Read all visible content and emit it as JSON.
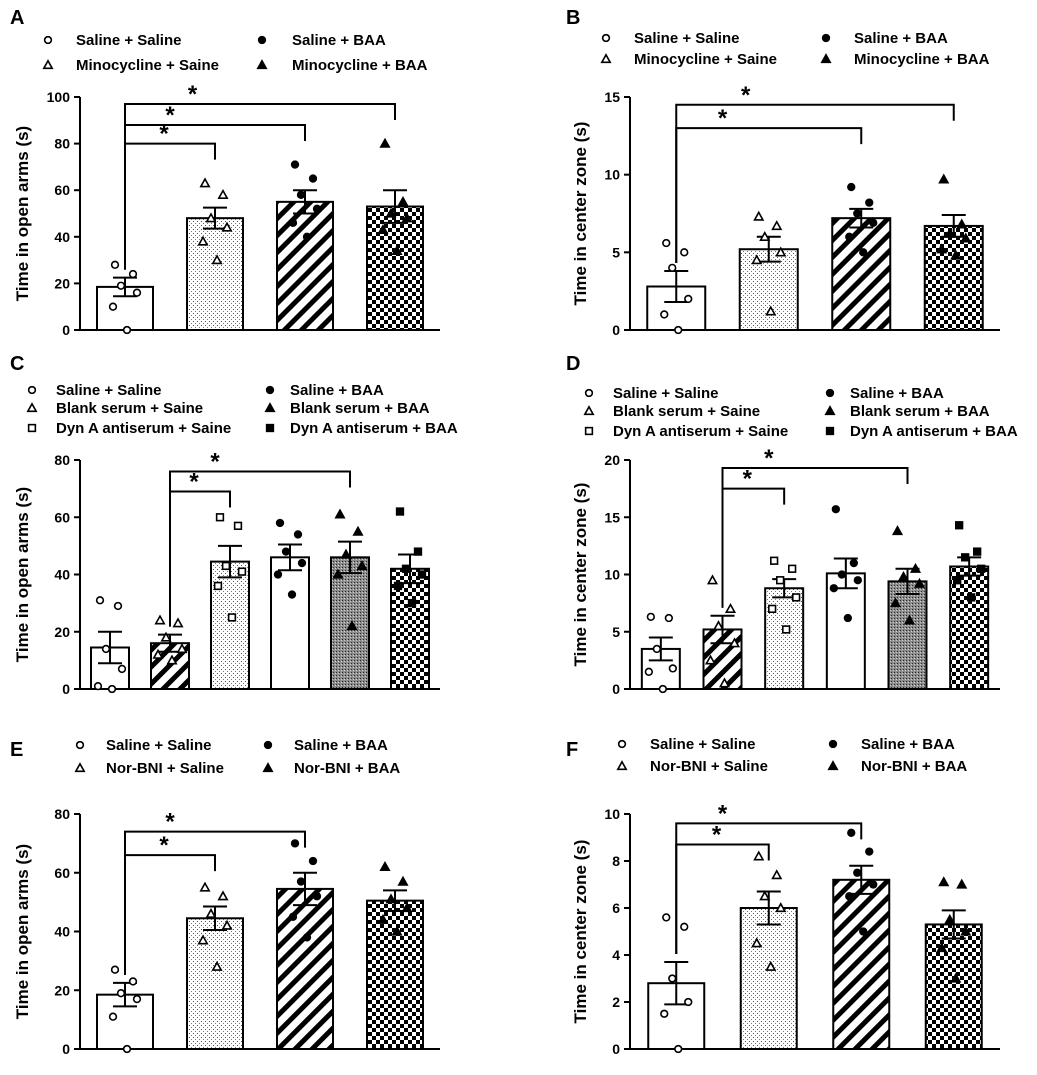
{
  "figure": {
    "colors": {
      "ink": "#000000",
      "background": "#ffffff"
    }
  },
  "chart_data": [
    {
      "panel": "A",
      "type": "bar",
      "ylabel": "Time in open arms (s)",
      "ylim": [
        0,
        100
      ],
      "yticks": [
        0,
        20,
        40,
        60,
        80,
        100
      ],
      "legend_entries": [
        "Saline + Saline",
        "Saline + BAA",
        "Minocycline + Saine",
        "Minocycline + BAA"
      ],
      "legend_markers": [
        "circle-open",
        "circle",
        "triangle-open",
        "triangle"
      ],
      "groups": [
        {
          "name": "Saline + Saline",
          "mean": 18.5,
          "sem": 4,
          "fill": "white",
          "marker": "circle-open",
          "points": [
            28,
            24,
            19,
            16,
            10,
            0
          ]
        },
        {
          "name": "Minocycline + Saine",
          "mean": 48,
          "sem": 4.5,
          "fill": "dots",
          "marker": "triangle-open",
          "points": [
            63,
            58,
            48,
            44,
            38,
            30
          ]
        },
        {
          "name": "Saline + BAA",
          "mean": 55,
          "sem": 5,
          "fill": "hatch",
          "marker": "circle",
          "points": [
            71,
            65,
            58,
            52,
            46,
            40
          ]
        },
        {
          "name": "Minocycline + BAA",
          "mean": 53,
          "sem": 7,
          "fill": "checker",
          "marker": "triangle",
          "points": [
            80,
            55,
            50,
            48,
            43,
            34
          ]
        }
      ],
      "significance": [
        {
          "from": 0,
          "to": 1,
          "level": 80,
          "label": "*"
        },
        {
          "from": 0,
          "to": 2,
          "level": 88,
          "label": "*"
        },
        {
          "from": 0,
          "to": 3,
          "level": 97,
          "label": "*"
        }
      ]
    },
    {
      "panel": "B",
      "type": "bar",
      "ylabel": "Time in center zone (s)",
      "ylim": [
        0,
        15
      ],
      "yticks": [
        0,
        5,
        10,
        15
      ],
      "legend_entries": [
        "Saline + Saline",
        "Saline + BAA",
        "Minocycline + Saine",
        "Minocycline + BAA"
      ],
      "legend_markers": [
        "circle-open",
        "circle",
        "triangle-open",
        "triangle"
      ],
      "groups": [
        {
          "name": "Saline + Saline",
          "mean": 2.8,
          "sem": 1,
          "fill": "white",
          "marker": "circle-open",
          "points": [
            5.6,
            5,
            4,
            2,
            1,
            0
          ]
        },
        {
          "name": "Minocycline + Saine",
          "mean": 5.2,
          "sem": 0.8,
          "fill": "dots",
          "marker": "triangle-open",
          "points": [
            7.3,
            6.7,
            6,
            5,
            4.5,
            1.2
          ]
        },
        {
          "name": "Saline + BAA",
          "mean": 7.2,
          "sem": 0.6,
          "fill": "hatch",
          "marker": "circle",
          "points": [
            9.2,
            8.2,
            7.5,
            6.9,
            6,
            5
          ]
        },
        {
          "name": "Minocycline + BAA",
          "mean": 6.7,
          "sem": 0.7,
          "fill": "checker",
          "marker": "triangle",
          "points": [
            9.7,
            6.8,
            6.2,
            5.9,
            5.2,
            4.8
          ]
        }
      ],
      "significance": [
        {
          "from": 0,
          "to": 2,
          "level": 13,
          "label": "*"
        },
        {
          "from": 0,
          "to": 3,
          "level": 14.5,
          "label": "*"
        }
      ]
    },
    {
      "panel": "C",
      "type": "bar",
      "ylabel": "Time in open arms (s)",
      "ylim": [
        0,
        80
      ],
      "yticks": [
        0,
        20,
        40,
        60,
        80
      ],
      "legend_entries": [
        "Saline + Saline",
        "Saline +  BAA",
        "Blank serum + Saine",
        "Blank serum + BAA",
        "Dyn A antiserum + Saine",
        "Dyn A antiserum + BAA"
      ],
      "legend_markers": [
        "circle-open",
        "circle",
        "triangle-open",
        "triangle",
        "square-open",
        "square"
      ],
      "groups": [
        {
          "name": "Saline + Saline",
          "mean": 14.5,
          "sem": 5.5,
          "fill": "white",
          "marker": "circle-open",
          "points": [
            31,
            29,
            14,
            7,
            1,
            0
          ]
        },
        {
          "name": "Blank serum + Saine",
          "mean": 16,
          "sem": 3,
          "fill": "hatch",
          "marker": "triangle-open",
          "points": [
            24,
            23,
            18,
            14,
            12,
            10
          ]
        },
        {
          "name": "Dyn A antiserum + Saine",
          "mean": 44.5,
          "sem": 5.5,
          "fill": "dots",
          "marker": "square-open",
          "points": [
            60,
            57,
            43,
            41,
            36,
            25
          ]
        },
        {
          "name": "Saline +  BAA",
          "mean": 46,
          "sem": 4.5,
          "fill": "white",
          "marker": "circle",
          "points": [
            58,
            54,
            48,
            44,
            40,
            33
          ]
        },
        {
          "name": "Blank serum + BAA",
          "mean": 46,
          "sem": 5.5,
          "fill": "dense",
          "marker": "triangle",
          "points": [
            61,
            55,
            47,
            43,
            40,
            22
          ]
        },
        {
          "name": "Dyn A antiserum + BAA",
          "mean": 42,
          "sem": 5,
          "fill": "checker",
          "marker": "square",
          "points": [
            62,
            48,
            42,
            40,
            36,
            30
          ]
        }
      ],
      "significance": [
        {
          "from": 1,
          "to": 2,
          "level": 69,
          "label": "*"
        },
        {
          "from": 1,
          "to": 4,
          "level": 76,
          "label": "*"
        }
      ]
    },
    {
      "panel": "D",
      "type": "bar",
      "ylabel": "Time in center zone (s)",
      "ylim": [
        0,
        20
      ],
      "yticks": [
        0,
        5,
        10,
        15,
        20
      ],
      "legend_entries": [
        "Saline + Saline",
        "Saline +  BAA",
        "Blank serum + Saine",
        "Blank serum + BAA",
        "Dyn A antiserum + Saine",
        "Dyn A antiserum + BAA"
      ],
      "legend_markers": [
        "circle-open",
        "circle",
        "triangle-open",
        "triangle",
        "square-open",
        "square"
      ],
      "groups": [
        {
          "name": "Saline + Saline",
          "mean": 3.5,
          "sem": 1,
          "fill": "white",
          "marker": "circle-open",
          "points": [
            6.3,
            6.2,
            3.5,
            1.8,
            1.5,
            0
          ]
        },
        {
          "name": "Blank serum + Saine",
          "mean": 5.2,
          "sem": 1.2,
          "fill": "hatch",
          "marker": "triangle-open",
          "points": [
            9.5,
            7,
            5.5,
            4,
            2.5,
            0.5
          ]
        },
        {
          "name": "Dyn A antiserum + Saine",
          "mean": 8.8,
          "sem": 0.8,
          "fill": "dots",
          "marker": "square-open",
          "points": [
            11.2,
            10.5,
            9.5,
            8,
            7,
            5.2
          ]
        },
        {
          "name": "Saline +  BAA",
          "mean": 10.1,
          "sem": 1.3,
          "fill": "white",
          "marker": "circle",
          "points": [
            15.7,
            11,
            10,
            9.5,
            8.8,
            6.2
          ]
        },
        {
          "name": "Blank serum + BAA",
          "mean": 9.4,
          "sem": 1.1,
          "fill": "dense",
          "marker": "triangle",
          "points": [
            13.8,
            10.5,
            9.8,
            9.2,
            7.5,
            6
          ]
        },
        {
          "name": "Dyn A antiserum + BAA",
          "mean": 10.7,
          "sem": 0.8,
          "fill": "checker",
          "marker": "square",
          "points": [
            14.3,
            12,
            11.5,
            10.5,
            9.5,
            8
          ]
        }
      ],
      "significance": [
        {
          "from": 1,
          "to": 2,
          "level": 17.5,
          "label": "*"
        },
        {
          "from": 1,
          "to": 4,
          "level": 19.3,
          "label": "*"
        }
      ]
    },
    {
      "panel": "E",
      "type": "bar",
      "ylabel": "Time in open arms (s)",
      "ylim": [
        0,
        80
      ],
      "yticks": [
        0,
        20,
        40,
        60,
        80
      ],
      "legend_entries": [
        "Saline + Saline",
        "Saline + BAA",
        "Nor-BNI + Saline",
        "Nor-BNI + BAA"
      ],
      "legend_markers": [
        "circle-open",
        "circle",
        "triangle-open",
        "triangle"
      ],
      "groups": [
        {
          "name": "Saline + Saline",
          "mean": 18.5,
          "sem": 4,
          "fill": "white",
          "marker": "circle-open",
          "points": [
            27,
            23,
            19,
            17,
            11,
            0
          ]
        },
        {
          "name": "Nor-BNI + Saline",
          "mean": 44.5,
          "sem": 4,
          "fill": "dots",
          "marker": "triangle-open",
          "points": [
            55,
            52,
            46,
            42,
            37,
            28
          ]
        },
        {
          "name": "Saline + BAA",
          "mean": 54.5,
          "sem": 5.5,
          "fill": "hatch",
          "marker": "circle",
          "points": [
            70,
            64,
            57,
            52,
            45,
            38
          ]
        },
        {
          "name": "Nor-BNI + BAA",
          "mean": 50.5,
          "sem": 3.5,
          "fill": "checker",
          "marker": "triangle",
          "points": [
            62,
            57,
            51,
            48,
            44,
            40
          ]
        }
      ],
      "significance": [
        {
          "from": 0,
          "to": 1,
          "level": 66,
          "label": "*"
        },
        {
          "from": 0,
          "to": 2,
          "level": 74,
          "label": "*"
        }
      ]
    },
    {
      "panel": "F",
      "type": "bar",
      "ylabel": "Time in center zone (s)",
      "ylim": [
        0,
        10
      ],
      "yticks": [
        0,
        2,
        4,
        6,
        8,
        10
      ],
      "legend_entries": [
        "Saline + Saline",
        "Saline + BAA",
        "Nor-BNI + Saline",
        "Nor-BNI + BAA"
      ],
      "legend_markers": [
        "circle-open",
        "circle",
        "triangle-open",
        "triangle"
      ],
      "groups": [
        {
          "name": "Saline + Saline",
          "mean": 2.8,
          "sem": 0.9,
          "fill": "white",
          "marker": "circle-open",
          "points": [
            5.6,
            5.2,
            3,
            2,
            1.5,
            0
          ]
        },
        {
          "name": "Nor-BNI + Saline",
          "mean": 6,
          "sem": 0.7,
          "fill": "dots",
          "marker": "triangle-open",
          "points": [
            8.2,
            7.4,
            6.5,
            6,
            4.5,
            3.5
          ]
        },
        {
          "name": "Saline + BAA",
          "mean": 7.2,
          "sem": 0.6,
          "fill": "hatch",
          "marker": "circle",
          "points": [
            9.2,
            8.4,
            7.5,
            7,
            6.5,
            5
          ]
        },
        {
          "name": "Nor-BNI + BAA",
          "mean": 5.3,
          "sem": 0.6,
          "fill": "checker",
          "marker": "triangle",
          "points": [
            7.1,
            7,
            5.5,
            5,
            4.3,
            3
          ]
        }
      ],
      "significance": [
        {
          "from": 0,
          "to": 1,
          "level": 8.7,
          "label": "*"
        },
        {
          "from": 0,
          "to": 2,
          "level": 9.6,
          "label": "*"
        }
      ]
    }
  ]
}
